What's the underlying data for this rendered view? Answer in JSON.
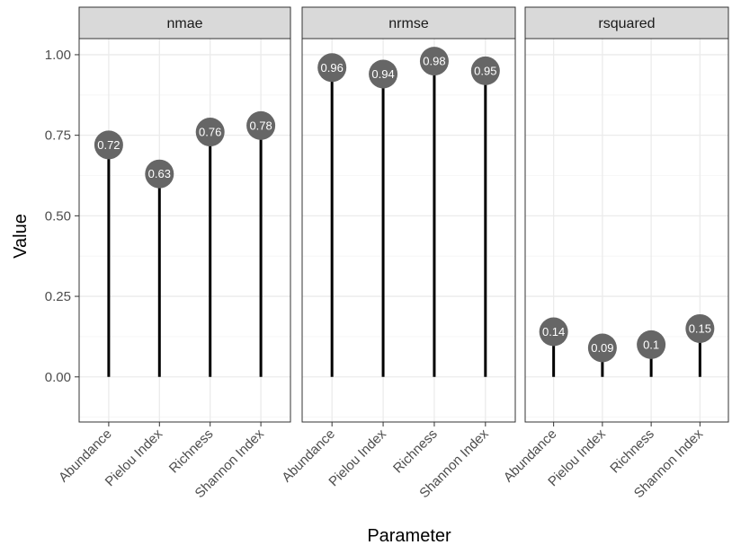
{
  "chart_data": {
    "type": "lollipop",
    "xlabel": "Parameter",
    "ylabel": "Value",
    "ylim": [
      -0.14,
      1.05
    ],
    "yticks": [
      "0.00",
      "0.25",
      "0.50",
      "0.75",
      "1.00"
    ],
    "ytick_values": [
      0,
      0.25,
      0.5,
      0.75,
      1.0
    ],
    "categories": [
      "Abundance",
      "Pielou Index",
      "Richness",
      "Shannon Index"
    ],
    "panels": [
      {
        "name": "nmae",
        "values": [
          0.72,
          0.63,
          0.76,
          0.78
        ],
        "labels": [
          "0.72",
          "0.63",
          "0.76",
          "0.78"
        ]
      },
      {
        "name": "nrmse",
        "values": [
          0.96,
          0.94,
          0.98,
          0.95
        ],
        "labels": [
          "0.96",
          "0.94",
          "0.98",
          "0.95"
        ]
      },
      {
        "name": "rsquared",
        "values": [
          0.14,
          0.09,
          0.1,
          0.15
        ],
        "labels": [
          "0.14",
          "0.09",
          "0.1",
          "0.15"
        ]
      }
    ],
    "colors": {
      "point": "#666666",
      "stem": "#000000",
      "strip": "#d9d9d9"
    },
    "grid": true
  }
}
